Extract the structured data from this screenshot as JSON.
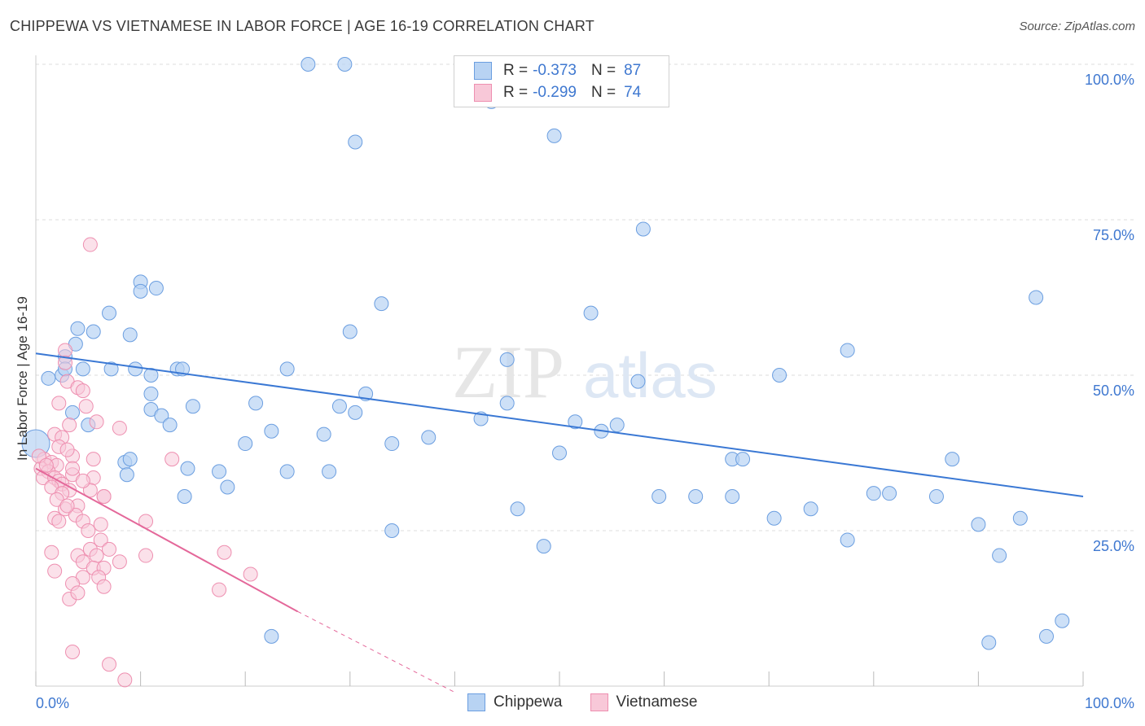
{
  "title": "CHIPPEWA VS VIETNAMESE IN LABOR FORCE | AGE 16-19 CORRELATION CHART",
  "source": "Source: ZipAtlas.com",
  "legend": {
    "rows": [
      {
        "r_label": "R =",
        "r_value": "-0.373",
        "n_label": "N =",
        "n_value": "87"
      },
      {
        "r_label": "R =",
        "r_value": "-0.299",
        "n_label": "N =",
        "n_value": "74"
      }
    ]
  },
  "bottom_legend": {
    "series1": "Chippewa",
    "series2": "Vietnamese"
  },
  "colors": {
    "chippewa_fill": "#b8d3f3",
    "chippewa_stroke": "#6b9ee0",
    "chippewa_line": "#3a78d4",
    "vietnamese_fill": "#f8c8d8",
    "vietnamese_stroke": "#ee8fb0",
    "vietnamese_line": "#e4689a",
    "axis_label": "#3f78d0",
    "grid": "#dddddd"
  },
  "chart_data": {
    "type": "scatter",
    "title": "CHIPPEWA VS VIETNAMESE IN LABOR FORCE | AGE 16-19 CORRELATION CHART",
    "xlabel": "",
    "ylabel": "In Labor Force | Age 16-19",
    "xlim": [
      0,
      100
    ],
    "ylim": [
      0,
      100
    ],
    "x_tick_labels": [
      "0.0%",
      "100.0%"
    ],
    "y_tick_labels": [
      "25.0%",
      "50.0%",
      "75.0%",
      "100.0%"
    ],
    "y_ticks": [
      25,
      50,
      75,
      100
    ],
    "grid": "horizontal dashed",
    "watermark": "ZIPatlas",
    "series": [
      {
        "name": "Chippewa",
        "trend": {
          "x": [
            0,
            100
          ],
          "y": [
            53.5,
            30.5
          ]
        },
        "points": [
          [
            26,
            100
          ],
          [
            29.5,
            100
          ],
          [
            43.5,
            94
          ],
          [
            49.5,
            88.5
          ],
          [
            30.5,
            87.5
          ],
          [
            58,
            73.5
          ],
          [
            10,
            65
          ],
          [
            11.5,
            64
          ],
          [
            10,
            63.5
          ],
          [
            7,
            60
          ],
          [
            33,
            61.5
          ],
          [
            53,
            60
          ],
          [
            95.5,
            62.5
          ],
          [
            4,
            57.5
          ],
          [
            5.5,
            57
          ],
          [
            3.8,
            55
          ],
          [
            9,
            56.5
          ],
          [
            2.8,
            53
          ],
          [
            2.5,
            50
          ],
          [
            1.2,
            49.5
          ],
          [
            2.8,
            51
          ],
          [
            4.5,
            51
          ],
          [
            7.2,
            51
          ],
          [
            9.5,
            51
          ],
          [
            11,
            50
          ],
          [
            13.5,
            51
          ],
          [
            14,
            51
          ],
          [
            24,
            51
          ],
          [
            30,
            57
          ],
          [
            3.5,
            44
          ],
          [
            11,
            47
          ],
          [
            15,
            45
          ],
          [
            11,
            44.5
          ],
          [
            12,
            43.5
          ],
          [
            21,
            45.5
          ],
          [
            29,
            45
          ],
          [
            30.5,
            44
          ],
          [
            31.5,
            47
          ],
          [
            45,
            52.5
          ],
          [
            45,
            45.5
          ],
          [
            57.5,
            49
          ],
          [
            71,
            50
          ],
          [
            77.5,
            54
          ],
          [
            5,
            42
          ],
          [
            12.8,
            42
          ],
          [
            22.5,
            41
          ],
          [
            27.5,
            40.5
          ],
          [
            42.5,
            43
          ],
          [
            51.5,
            42.5
          ],
          [
            54,
            41
          ],
          [
            55.5,
            42
          ],
          [
            8.5,
            36
          ],
          [
            9,
            36.5
          ],
          [
            14.5,
            35
          ],
          [
            17.5,
            34.5
          ],
          [
            24,
            34.5
          ],
          [
            28,
            34.5
          ],
          [
            37.5,
            40
          ],
          [
            50,
            37.5
          ],
          [
            66.5,
            36.5
          ],
          [
            67.5,
            36.5
          ],
          [
            87.5,
            36.5
          ],
          [
            8.7,
            34
          ],
          [
            14.2,
            30.5
          ],
          [
            18.3,
            32
          ],
          [
            59.5,
            30.5
          ],
          [
            63,
            30.5
          ],
          [
            66.5,
            30.5
          ],
          [
            80,
            31
          ],
          [
            81.5,
            31
          ],
          [
            86,
            30.5
          ],
          [
            46,
            28.5
          ],
          [
            74,
            28.5
          ],
          [
            70.5,
            27
          ],
          [
            94,
            27
          ],
          [
            90,
            26
          ],
          [
            34,
            25
          ],
          [
            48.5,
            22.5
          ],
          [
            77.5,
            23.5
          ],
          [
            92,
            21
          ],
          [
            22.5,
            8
          ],
          [
            91,
            7
          ],
          [
            96.5,
            8
          ],
          [
            98,
            10.5
          ],
          [
            0,
            39
          ],
          [
            20,
            39
          ],
          [
            34,
            39
          ]
        ]
      },
      {
        "name": "Vietnamese",
        "trend": {
          "x": [
            0,
            25
          ],
          "y": [
            35,
            12
          ]
        },
        "trend_dashed": {
          "x": [
            25,
            40
          ],
          "y": [
            12,
            -1
          ]
        },
        "points": [
          [
            5.2,
            71
          ],
          [
            2.8,
            54
          ],
          [
            2.8,
            52
          ],
          [
            3,
            49
          ],
          [
            4,
            48
          ],
          [
            4.5,
            47.5
          ],
          [
            2.2,
            45.5
          ],
          [
            4.8,
            45
          ],
          [
            3.2,
            42
          ],
          [
            1.8,
            40.5
          ],
          [
            2.5,
            40
          ],
          [
            5.8,
            42.5
          ],
          [
            8,
            41.5
          ],
          [
            2.2,
            38.5
          ],
          [
            3.5,
            37
          ],
          [
            0.8,
            36.5
          ],
          [
            1.5,
            36
          ],
          [
            2,
            35.5
          ],
          [
            0.5,
            35
          ],
          [
            1.2,
            34.5
          ],
          [
            3.5,
            34
          ],
          [
            0.7,
            33.5
          ],
          [
            1.8,
            33.5
          ],
          [
            2.2,
            33
          ],
          [
            2.5,
            32.5
          ],
          [
            5.5,
            33.5
          ],
          [
            1.5,
            32
          ],
          [
            3.2,
            31.5
          ],
          [
            2.5,
            31
          ],
          [
            5.2,
            31.5
          ],
          [
            6.5,
            30.5
          ],
          [
            4,
            29
          ],
          [
            2.8,
            28.5
          ],
          [
            3.8,
            27.5
          ],
          [
            1.8,
            27
          ],
          [
            2.2,
            26.5
          ],
          [
            4.5,
            26.5
          ],
          [
            6.2,
            26
          ],
          [
            10.5,
            26.5
          ],
          [
            6.2,
            23.5
          ],
          [
            5.2,
            22
          ],
          [
            5.8,
            21
          ],
          [
            10.5,
            21
          ],
          [
            1.5,
            21.5
          ],
          [
            4,
            21
          ],
          [
            4.5,
            20
          ],
          [
            5.5,
            19
          ],
          [
            6.5,
            19
          ],
          [
            1.8,
            18.5
          ],
          [
            4.5,
            17.5
          ],
          [
            6,
            17.5
          ],
          [
            3.5,
            16.5
          ],
          [
            6.5,
            16
          ],
          [
            17.5,
            15.5
          ],
          [
            3.2,
            14
          ],
          [
            20.5,
            18
          ],
          [
            18,
            21.5
          ],
          [
            6.5,
            30.5
          ],
          [
            13,
            36.5
          ],
          [
            5.5,
            36.5
          ],
          [
            3.5,
            5.5
          ],
          [
            7,
            3.5
          ],
          [
            8.5,
            1
          ],
          [
            0.3,
            37
          ],
          [
            1,
            35.5
          ],
          [
            3,
            38
          ],
          [
            8,
            20
          ],
          [
            7,
            22
          ],
          [
            4,
            15
          ],
          [
            2,
            30
          ],
          [
            3.5,
            35
          ],
          [
            5,
            25
          ],
          [
            4.5,
            33
          ],
          [
            3,
            29
          ]
        ]
      }
    ]
  }
}
